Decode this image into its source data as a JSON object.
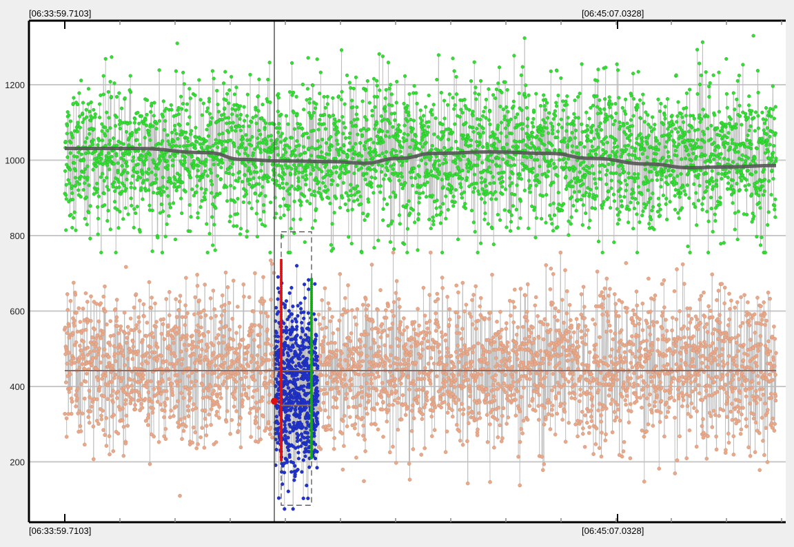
{
  "chart_data": {
    "type": "scatter",
    "title": "",
    "xlabel": "",
    "ylabel": "",
    "x_start_label": "[06:33:59.7103]",
    "x_mid_label": "[06:45:07.0328]",
    "ylim": [
      40,
      1370
    ],
    "yticks": [
      200,
      400,
      600,
      800,
      1000,
      1200
    ],
    "grid": true,
    "legend": "none",
    "series": [
      {
        "kind": "cloud",
        "color": "#33dd33",
        "stroke": "#22aa22",
        "center": 1010,
        "spread": 95,
        "min": 755,
        "max": 1330
      },
      {
        "kind": "cloud",
        "color": "#e8a88a",
        "stroke": "#c98a6e",
        "center": 450,
        "spread": 100,
        "min": 110,
        "max": 755
      },
      {
        "kind": "selection",
        "color": "#2233cc",
        "stroke": "#112299",
        "center": 395,
        "spread": 110,
        "min": 75,
        "max": 720
      }
    ],
    "trend_green": [
      [
        0.0,
        1031
      ],
      [
        0.1,
        1031
      ],
      [
        0.2,
        1020
      ],
      [
        0.25,
        1002
      ],
      [
        0.3,
        998
      ],
      [
        0.38,
        996
      ],
      [
        0.42,
        992
      ],
      [
        0.47,
        1005
      ],
      [
        0.52,
        1018
      ],
      [
        0.6,
        1022
      ],
      [
        0.68,
        1018
      ],
      [
        0.74,
        1005
      ],
      [
        0.82,
        990
      ],
      [
        0.88,
        980
      ],
      [
        0.93,
        982
      ],
      [
        1.0,
        986
      ]
    ],
    "mean_salmon": 442,
    "selection_mean": 350,
    "cursor_point": 361,
    "colors": {
      "grid": "#c8c8c8",
      "trend": "#555555",
      "mean": "#8a6a62",
      "stem": "#bdbdbd",
      "cursor": "#555555",
      "marker_red": "#dd1111",
      "marker_green": "#11aa11",
      "selection_box": "#444444"
    }
  }
}
